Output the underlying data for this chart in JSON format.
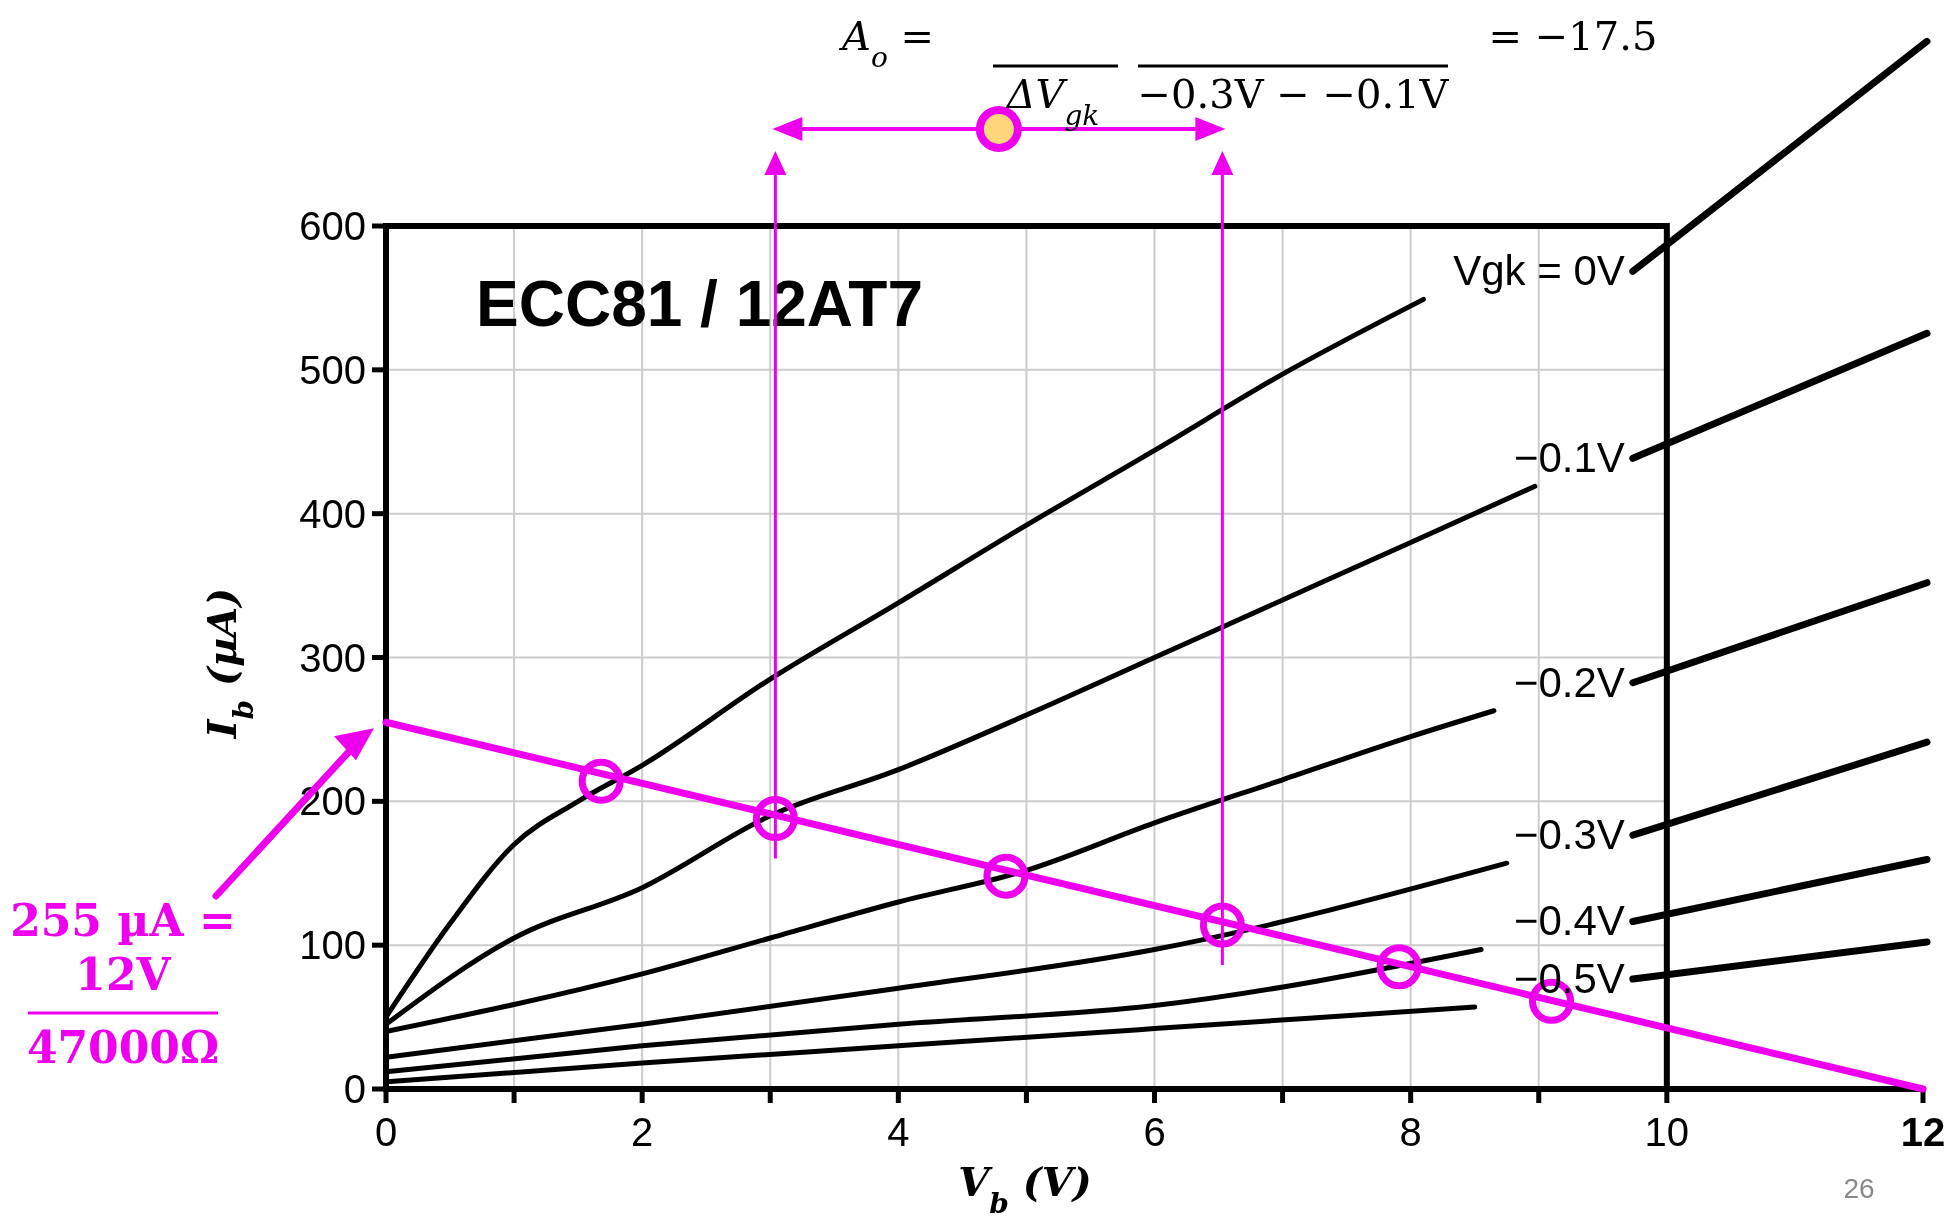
{
  "chart_data": {
    "type": "line",
    "title": "ECC81 / 12AT7",
    "xlabel": "V$_{b}$ (V)",
    "ylabel": "I$_{b}$ (µA)",
    "xlim": [
      0,
      12
    ],
    "ylim": [
      0,
      600
    ],
    "xticks": [
      0,
      {
        "value": 1,
        "label": null
      },
      2,
      {
        "value": 3,
        "label": null
      },
      4,
      {
        "value": 5,
        "label": null
      },
      6,
      {
        "value": 7,
        "label": null
      },
      8,
      {
        "value": 9,
        "label": null
      },
      10,
      12
    ],
    "yticks": [
      0,
      100,
      200,
      300,
      400,
      500,
      600
    ],
    "grid": true,
    "legend": false,
    "series": [
      {
        "name": "Vgk = 0V",
        "color": "#000000",
        "x": [
          0,
          0.5,
          1,
          1.5,
          2,
          3,
          4,
          5,
          6,
          7,
          8.1
        ],
        "values": [
          50,
          115,
          170,
          200,
          225,
          285,
          338,
          392,
          444,
          497,
          549
        ]
      },
      {
        "name": "−0.1V",
        "color": "#000000",
        "x": [
          0,
          1,
          2,
          3,
          4,
          5,
          6,
          7,
          8,
          8.97
        ],
        "values": [
          45,
          105,
          140,
          190,
          222,
          260,
          300,
          340,
          380,
          419
        ]
      },
      {
        "name": "−0.2V",
        "color": "#000000",
        "x": [
          0,
          2,
          3,
          4,
          5,
          6,
          7,
          8,
          8.65
        ],
        "values": [
          40,
          80,
          105,
          130,
          152,
          185,
          215,
          245,
          263
        ]
      },
      {
        "name": "−0.3V",
        "color": "#000000",
        "x": [
          0,
          2,
          4,
          6,
          8.75
        ],
        "values": [
          22,
          45,
          70,
          97,
          157
        ]
      },
      {
        "name": "−0.4V",
        "color": "#000000",
        "x": [
          0,
          2,
          4,
          6,
          8.55
        ],
        "values": [
          12,
          30,
          45,
          58,
          97
        ]
      },
      {
        "name": "−0.5V",
        "color": "#000000",
        "x": [
          0,
          2,
          4,
          6,
          8.5
        ],
        "values": [
          5,
          18,
          30,
          42,
          57
        ]
      },
      {
        "type": "line",
        "color": "#ee00ee",
        "x": [
          0,
          12
        ],
        "values": [
          255,
          0
        ]
      },
      {
        "type": "scatter",
        "marker": "circle",
        "color": "#ee00ee",
        "x": [
          1.68,
          3.04,
          4.84,
          6.53,
          7.91,
          9.1
        ],
        "values": [
          214,
          188,
          148,
          114,
          85,
          61
        ]
      }
    ],
    "ref_lines": [
      {
        "axis": "x",
        "value": 3.04,
        "color": "#ee00ee"
      },
      {
        "axis": "x",
        "value": 6.53,
        "color": "#ee00ee"
      }
    ],
    "annotations": [
      "A$_{o}$ =",
      "ΔV$_{gk}$",
      "−0.3V − −0.1V",
      "= −17.5",
      "255 µA =",
      "12V",
      "47000Ω",
      "26"
    ]
  }
}
